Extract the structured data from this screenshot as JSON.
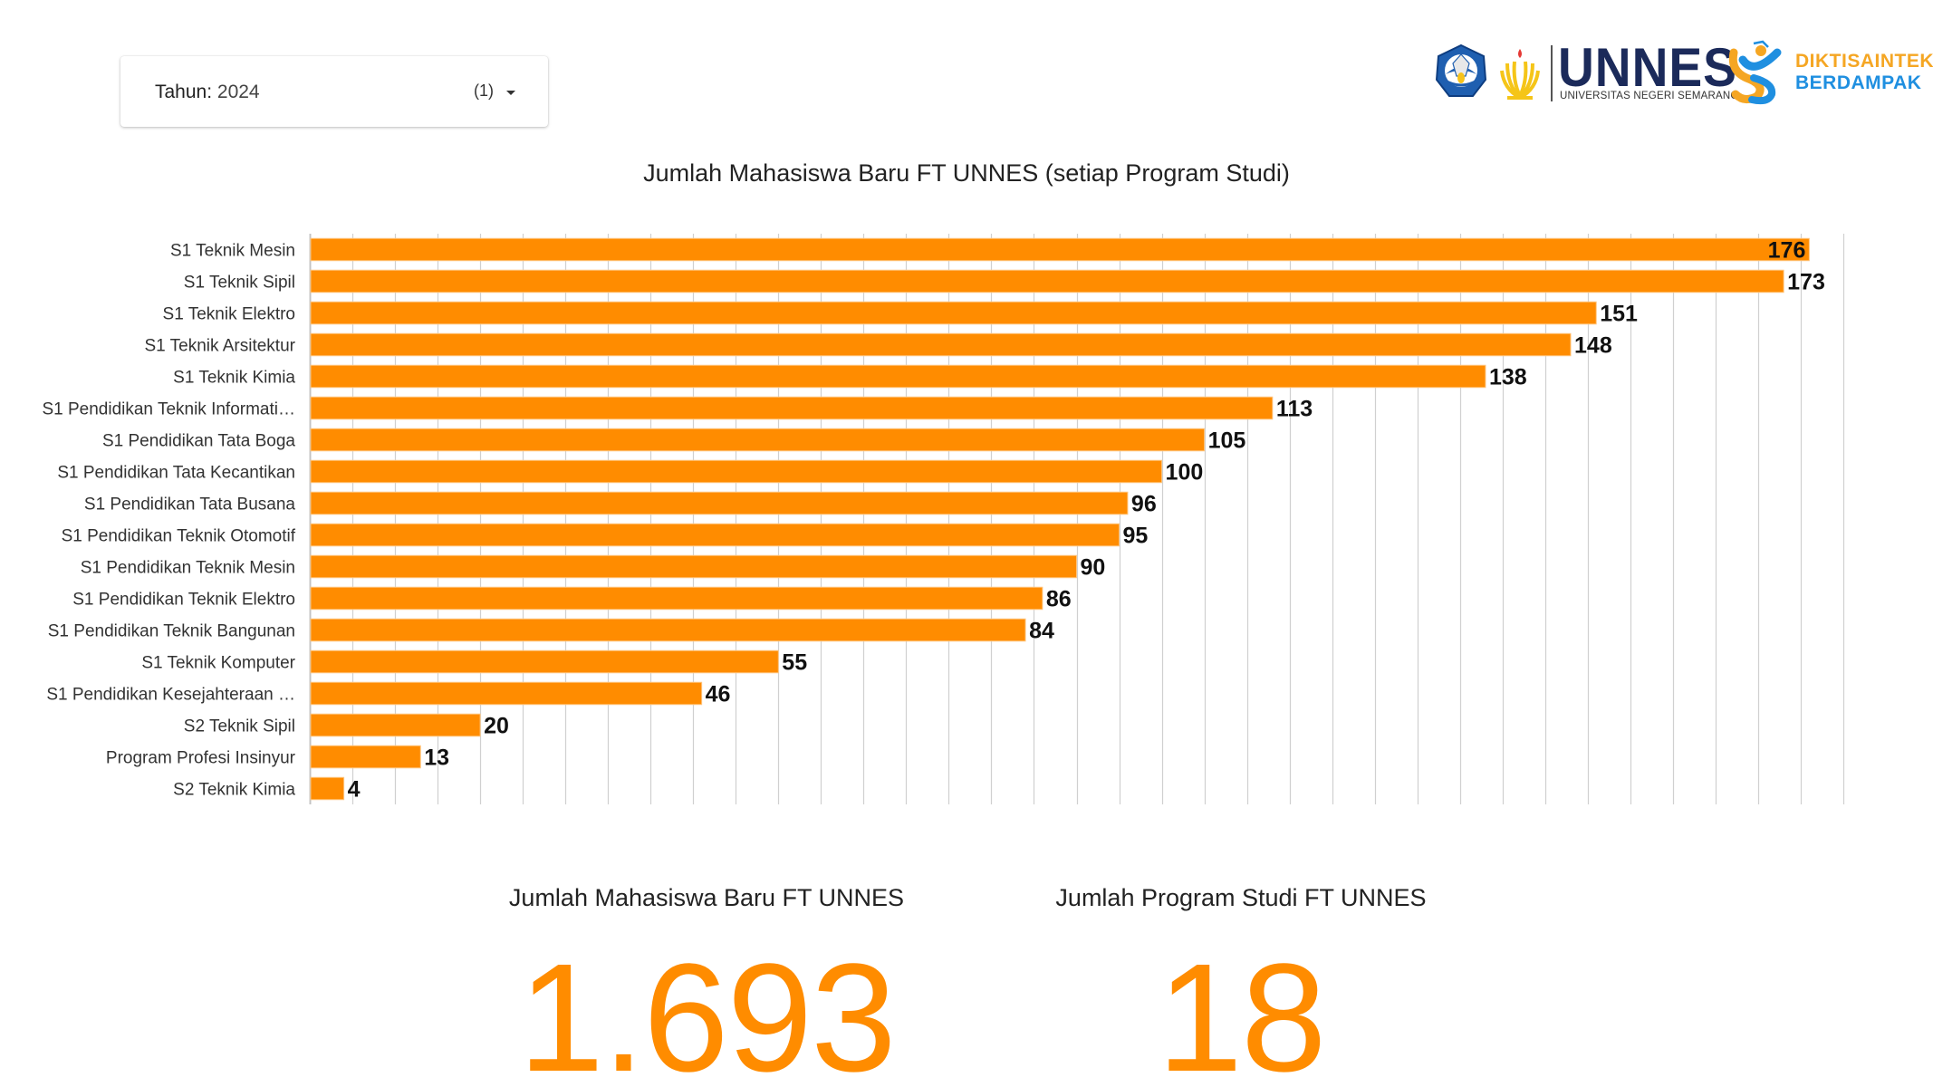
{
  "filter": {
    "label": "Tahun",
    "value": "2024",
    "selected_count": "(1)",
    "icon": "caret-down-icon"
  },
  "logos": {
    "kemdikbud_alt": "Tut Wuri Handayani",
    "unnes_word": "UNNES",
    "unnes_subtitle": "UNIVERSITAS NEGERI SEMARANG",
    "dikti_line1": "DIKTISAINTEK",
    "dikti_line2": "BERDAMPAK"
  },
  "colors": {
    "bar": "#ff8c00",
    "bar_border": "#ffc680",
    "grid": "#d0d0d0",
    "axis": "#c4c4c4",
    "kpi_value": "#ff8c00",
    "unnes_navy": "#1b2a5a",
    "dikti_orange": "#f5a623",
    "dikti_blue": "#1f8fe0"
  },
  "chart_data": {
    "type": "bar",
    "orientation": "horizontal",
    "title": "Jumlah Mahasiswa Baru FT UNNES (setiap Program Studi)",
    "xlabel": "",
    "ylabel": "",
    "xlim": [
      0,
      180
    ],
    "grid": true,
    "grid_step": 5,
    "show_x_tick_labels": false,
    "legend": "none",
    "data_labels": true,
    "categories": [
      "S1 Teknik Mesin",
      "S1 Teknik Sipil",
      "S1 Teknik Elektro",
      "S1 Teknik Arsitektur",
      "S1 Teknik Kimia",
      "S1 Pendidikan Teknik Informati…",
      "S1 Pendidikan Tata Boga",
      "S1 Pendidikan Tata Kecantikan",
      "S1 Pendidikan Tata Busana",
      "S1 Pendidikan Teknik Otomotif",
      "S1 Pendidikan Teknik Mesin",
      "S1 Pendidikan Teknik Elektro",
      "S1 Pendidikan Teknik Bangunan",
      "S1 Teknik Komputer",
      "S1 Pendidikan Kesejahteraan …",
      "S2 Teknik Sipil",
      "Program Profesi Insinyur",
      "S2 Teknik Kimia"
    ],
    "values": [
      176,
      173,
      151,
      148,
      138,
      113,
      105,
      100,
      96,
      95,
      90,
      86,
      84,
      55,
      46,
      20,
      13,
      4
    ]
  },
  "scorecards": [
    {
      "title": "Jumlah Mahasiswa Baru FT UNNES",
      "value": "1.693"
    },
    {
      "title": "Jumlah Program Studi FT UNNES",
      "value": "18"
    }
  ]
}
